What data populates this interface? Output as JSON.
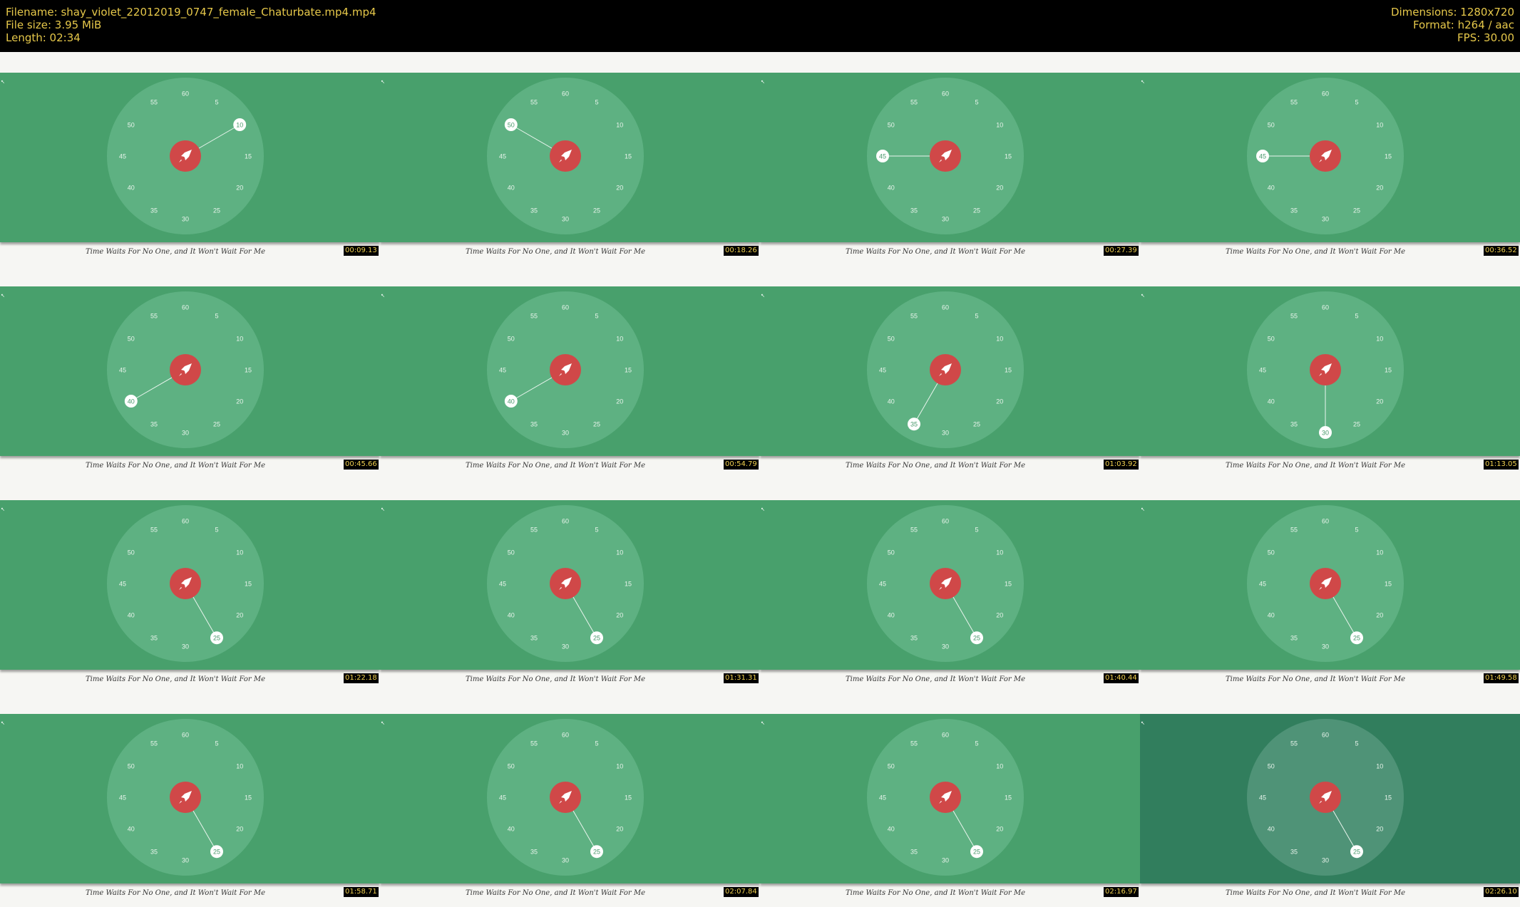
{
  "header": {
    "filename": "Filename: shay_violet_22012019_0747_female_Chaturbate.mp4.mp4",
    "filesize": "File size: 3.95 MiB",
    "length": "Length: 02:34",
    "dimensions": "Dimensions: 1280x720",
    "format": "Format: h264 / aac",
    "fps": "FPS: 30.00"
  },
  "caption_text": "Time Waits For No One, and It Won't Wait For Me",
  "dial_numbers": [
    "60",
    "5",
    "10",
    "15",
    "20",
    "25",
    "30",
    "35",
    "40",
    "45",
    "50",
    "55"
  ],
  "center_icon": "rocket-icon",
  "colors": {
    "band": "#48a06c",
    "band_dark": "#317e5d",
    "dial": "#5eb182",
    "center": "#d04848",
    "timestamp_bg": "#000000",
    "timestamp_fg": "#f0d050",
    "header_fg": "#e6c84a"
  },
  "thumbnails": [
    {
      "timestamp": "00:09.13",
      "marker": "10"
    },
    {
      "timestamp": "00:18.26",
      "marker": "50"
    },
    {
      "timestamp": "00:27.39",
      "marker": "45"
    },
    {
      "timestamp": "00:36.52",
      "marker": "45"
    },
    {
      "timestamp": "00:45.66",
      "marker": "40"
    },
    {
      "timestamp": "00:54.79",
      "marker": "40"
    },
    {
      "timestamp": "01:03.92",
      "marker": "35"
    },
    {
      "timestamp": "01:13.05",
      "marker": "30"
    },
    {
      "timestamp": "01:22.18",
      "marker": "25"
    },
    {
      "timestamp": "01:31.31",
      "marker": "25"
    },
    {
      "timestamp": "01:40.44",
      "marker": "25"
    },
    {
      "timestamp": "01:49.58",
      "marker": "25"
    },
    {
      "timestamp": "01:58.71",
      "marker": "25"
    },
    {
      "timestamp": "02:07.84",
      "marker": "25"
    },
    {
      "timestamp": "02:16.97",
      "marker": "25"
    },
    {
      "timestamp": "02:26.10",
      "marker": "25",
      "dimmed": true
    }
  ]
}
